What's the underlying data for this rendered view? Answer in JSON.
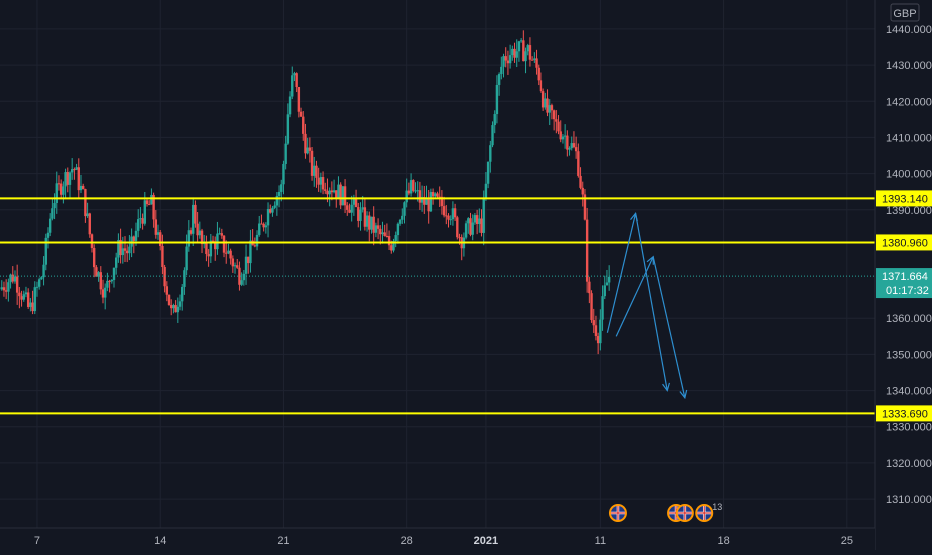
{
  "chart_data": {
    "type": "candlestick",
    "currency": "GBP",
    "ylim": [
      1302,
      1448
    ],
    "y_ticks": [
      {
        "value": 1310,
        "label": "1310.000"
      },
      {
        "value": 1320,
        "label": "1320.000"
      },
      {
        "value": 1330,
        "label": "1330.000"
      },
      {
        "value": 1340,
        "label": "1340.000"
      },
      {
        "value": 1350,
        "label": "1350.000"
      },
      {
        "value": 1360,
        "label": "1360.000"
      },
      {
        "value": 1390,
        "label": "1390.000"
      },
      {
        "value": 1400,
        "label": "1400.000"
      },
      {
        "value": 1410,
        "label": "1410.000"
      },
      {
        "value": 1420,
        "label": "1420.000"
      },
      {
        "value": 1430,
        "label": "1430.000"
      },
      {
        "value": 1440,
        "label": "1440.000"
      }
    ],
    "x_ticks": [
      {
        "x": 0,
        "label": "7",
        "bold": false
      },
      {
        "x": 7,
        "label": "14",
        "bold": false
      },
      {
        "x": 14,
        "label": "21",
        "bold": false
      },
      {
        "x": 21,
        "label": "28",
        "bold": false
      },
      {
        "x": 25.5,
        "label": "2021",
        "bold": true
      },
      {
        "x": 32,
        "label": "11",
        "bold": false
      },
      {
        "x": 39,
        "label": "18",
        "bold": false
      },
      {
        "x": 46,
        "label": "25",
        "bold": false
      }
    ],
    "x_range": [
      -2.1,
      47.6
    ],
    "horizontal_levels": [
      {
        "value": 1393.14,
        "label": "1393.140",
        "color": "#ffff00"
      },
      {
        "value": 1380.96,
        "label": "1380.960",
        "color": "#ffff00"
      },
      {
        "value": 1333.69,
        "label": "1333.690",
        "color": "#ffff00"
      }
    ],
    "current_price": {
      "value": 1371.664,
      "label": "1371.664",
      "countdown": "01:17:32",
      "color": "#26a69a"
    },
    "colors": {
      "up": "#26a69a",
      "down": "#ef5350",
      "projection": "#2e8fd0",
      "background": "#131722",
      "grid": "#1f2330"
    },
    "ohlc_anchors": [
      [
        -2.0,
        1368
      ],
      [
        -1.2,
        1372
      ],
      [
        -0.3,
        1362
      ],
      [
        0.4,
        1372
      ],
      [
        1.0,
        1392
      ],
      [
        1.6,
        1398
      ],
      [
        2.2,
        1402
      ],
      [
        2.8,
        1393
      ],
      [
        3.4,
        1375
      ],
      [
        4.0,
        1367
      ],
      [
        4.8,
        1380
      ],
      [
        5.4,
        1378
      ],
      [
        6.0,
        1388
      ],
      [
        6.6,
        1392
      ],
      [
        7.2,
        1376
      ],
      [
        7.8,
        1360
      ],
      [
        8.4,
        1370
      ],
      [
        9.0,
        1390
      ],
      [
        9.6,
        1378
      ],
      [
        10.4,
        1382
      ],
      [
        11.0,
        1378
      ],
      [
        11.6,
        1372
      ],
      [
        12.2,
        1378
      ],
      [
        12.8,
        1384
      ],
      [
        13.4,
        1392
      ],
      [
        14.0,
        1396
      ],
      [
        14.4,
        1418
      ],
      [
        14.7,
        1428
      ],
      [
        15.2,
        1412
      ],
      [
        15.8,
        1400
      ],
      [
        16.4,
        1398
      ],
      [
        17.0,
        1396
      ],
      [
        17.8,
        1392
      ],
      [
        18.6,
        1388
      ],
      [
        19.4,
        1384
      ],
      [
        20.2,
        1380
      ],
      [
        20.8,
        1390
      ],
      [
        21.4,
        1396
      ],
      [
        22.0,
        1392
      ],
      [
        22.8,
        1392
      ],
      [
        23.6,
        1390
      ],
      [
        24.2,
        1382
      ],
      [
        24.8,
        1386
      ],
      [
        25.4,
        1386
      ],
      [
        25.8,
        1404
      ],
      [
        26.2,
        1422
      ],
      [
        26.6,
        1432
      ],
      [
        27.2,
        1434
      ],
      [
        28.0,
        1434
      ],
      [
        28.6,
        1428
      ],
      [
        29.0,
        1418
      ],
      [
        29.5,
        1414
      ],
      [
        30.2,
        1410
      ],
      [
        30.8,
        1405
      ],
      [
        31.2,
        1390
      ],
      [
        31.4,
        1370
      ],
      [
        31.6,
        1360
      ],
      [
        32.0,
        1356
      ],
      [
        32.4,
        1368
      ],
      [
        32.6,
        1371.664
      ]
    ],
    "projections": [
      {
        "points": [
          [
            32.4,
            1356
          ],
          [
            34.0,
            1389
          ],
          [
            35.8,
            1340
          ]
        ]
      },
      {
        "points": [
          [
            32.9,
            1355
          ],
          [
            35.0,
            1377
          ],
          [
            36.8,
            1338
          ]
        ]
      }
    ],
    "event_markers": [
      {
        "x": 33.0,
        "count": ""
      },
      {
        "x": 36.3,
        "count": ""
      },
      {
        "x": 36.8,
        "count": ""
      },
      {
        "x": 37.9,
        "count": "13"
      }
    ]
  }
}
